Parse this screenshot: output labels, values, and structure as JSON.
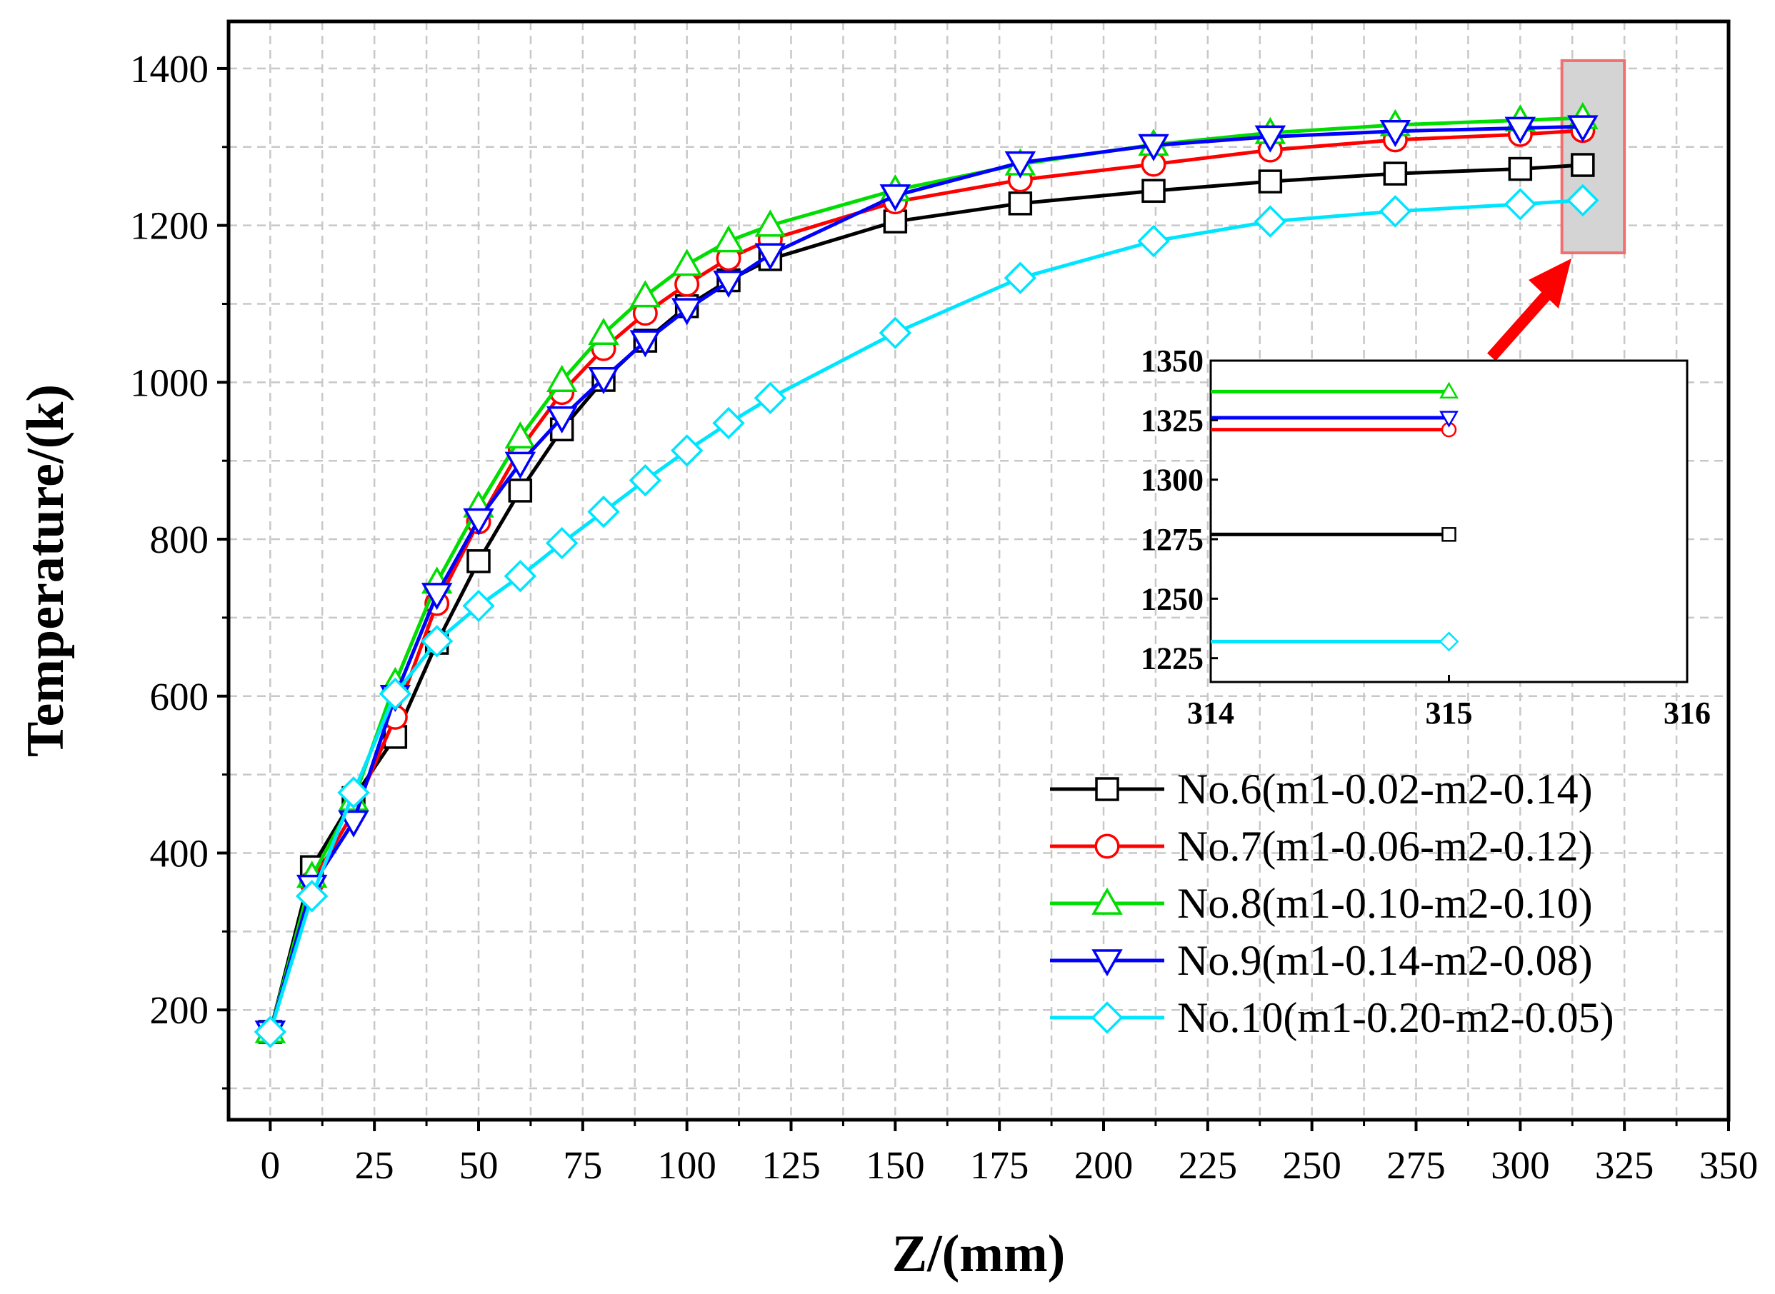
{
  "chart_data": {
    "type": "line",
    "title": "",
    "xlabel": "Z/(mm)",
    "ylabel": "Temperature/(k)",
    "xlim": [
      -10,
      350
    ],
    "ylim": [
      60,
      1460
    ],
    "xticks": [
      0,
      25,
      50,
      75,
      100,
      125,
      150,
      175,
      200,
      225,
      250,
      275,
      300,
      325,
      350
    ],
    "yticks": [
      200,
      400,
      600,
      800,
      1000,
      1200,
      1400
    ],
    "grid": true,
    "legend_position": "bottom-right",
    "x": [
      0,
      10,
      20,
      30,
      40,
      50,
      60,
      70,
      80,
      90,
      100,
      110,
      120,
      150,
      180,
      212,
      240,
      270,
      300,
      315
    ],
    "series": [
      {
        "name": "No.6(m1-0.02-m2-0.14)",
        "color": "#000000",
        "marker": "square",
        "values": [
          172,
          382,
          470,
          548,
          668,
          772,
          862,
          940,
          1003,
          1053,
          1097,
          1130,
          1157,
          1205,
          1228,
          1244,
          1256,
          1266,
          1272,
          1277
        ]
      },
      {
        "name": "No.7(m1-0.06-m2-0.12)",
        "color": "#ff0000",
        "marker": "circle",
        "values": [
          172,
          362,
          452,
          573,
          718,
          822,
          915,
          987,
          1043,
          1088,
          1125,
          1158,
          1182,
          1230,
          1258,
          1278,
          1296,
          1309,
          1316,
          1321
        ]
      },
      {
        "name": "No.8(m1-0.10-m2-0.10)",
        "color": "#00dd00",
        "marker": "triangle-up",
        "values": [
          172,
          370,
          468,
          617,
          745,
          842,
          930,
          1002,
          1062,
          1110,
          1150,
          1180,
          1200,
          1245,
          1278,
          1303,
          1318,
          1328,
          1334,
          1337
        ]
      },
      {
        "name": "No.9(m1-0.14-m2-0.08)",
        "color": "#0000ff",
        "marker": "triangle-down",
        "values": [
          172,
          358,
          440,
          600,
          730,
          825,
          897,
          955,
          1005,
          1052,
          1093,
          1128,
          1163,
          1238,
          1280,
          1302,
          1313,
          1320,
          1324,
          1326
        ]
      },
      {
        "name": "No.10(m1-0.20-m2-0.05)",
        "color": "#00e5ff",
        "marker": "diamond",
        "values": [
          172,
          345,
          477,
          603,
          670,
          715,
          753,
          795,
          835,
          875,
          913,
          948,
          980,
          1063,
          1133,
          1180,
          1205,
          1218,
          1227,
          1232
        ]
      }
    ],
    "inset": {
      "xlim": [
        314,
        316
      ],
      "ylim": [
        1215,
        1350
      ],
      "xticks": [
        314,
        315,
        316
      ],
      "yticks": [
        1225,
        1250,
        1275,
        1300,
        1325,
        1350
      ],
      "x_end": 315
    },
    "highlight_box": {
      "xrange": [
        310,
        325
      ],
      "yrange": [
        1165,
        1410
      ]
    }
  }
}
